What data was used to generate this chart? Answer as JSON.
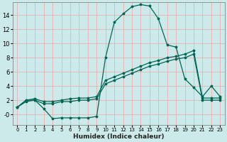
{
  "xlabel": "Humidex (Indice chaleur)",
  "bg_color": "#cceaea",
  "grid_color": "#e8b0b0",
  "line_color": "#006655",
  "xlim": [
    -0.5,
    23.5
  ],
  "ylim": [
    -1.5,
    15.8
  ],
  "xticks": [
    0,
    1,
    2,
    3,
    4,
    5,
    6,
    7,
    8,
    9,
    10,
    11,
    12,
    13,
    14,
    15,
    16,
    17,
    18,
    19,
    20,
    21,
    22,
    23
  ],
  "yticks": [
    0,
    2,
    4,
    6,
    8,
    10,
    12,
    14
  ],
  "ytick_labels": [
    "-0",
    "2",
    "4",
    "6",
    "8",
    "10",
    "12",
    "14"
  ],
  "line1_x": [
    0,
    1,
    2,
    3,
    4,
    5,
    6,
    7,
    8,
    9,
    10,
    11,
    12,
    13,
    14,
    15,
    16,
    17,
    18,
    19,
    20,
    21,
    22,
    23
  ],
  "line1_y": [
    1.0,
    2.0,
    2.0,
    0.8,
    -0.6,
    -0.5,
    -0.5,
    -0.5,
    -0.5,
    -0.3,
    8.0,
    13.0,
    14.2,
    15.2,
    15.5,
    15.3,
    13.5,
    9.8,
    9.5,
    5.0,
    3.8,
    2.5,
    4.0,
    2.5
  ],
  "line2_x": [
    0,
    1,
    2,
    3,
    4,
    5,
    6,
    7,
    8,
    9,
    10,
    11,
    12,
    13,
    14,
    15,
    16,
    17,
    18,
    19,
    20,
    21,
    22,
    23
  ],
  "line2_y": [
    1.0,
    2.0,
    2.2,
    1.8,
    1.8,
    2.0,
    2.2,
    2.3,
    2.3,
    2.5,
    4.8,
    5.3,
    5.8,
    6.3,
    6.8,
    7.3,
    7.6,
    8.0,
    8.2,
    8.5,
    9.0,
    2.3,
    2.3,
    2.3
  ],
  "line3_x": [
    0,
    1,
    2,
    3,
    4,
    5,
    6,
    7,
    8,
    9,
    10,
    11,
    12,
    13,
    14,
    15,
    16,
    17,
    18,
    19,
    20,
    21,
    22,
    23
  ],
  "line3_y": [
    1.0,
    1.8,
    2.0,
    1.5,
    1.5,
    1.8,
    1.8,
    2.0,
    2.0,
    2.2,
    4.3,
    4.8,
    5.3,
    5.8,
    6.3,
    6.8,
    7.1,
    7.5,
    7.8,
    8.0,
    8.5,
    2.0,
    2.0,
    2.0
  ],
  "xtick_fontsize": 5.0,
  "ytick_fontsize": 6.0,
  "xlabel_fontsize": 6.5,
  "linewidth": 0.9,
  "markersize": 2.5
}
